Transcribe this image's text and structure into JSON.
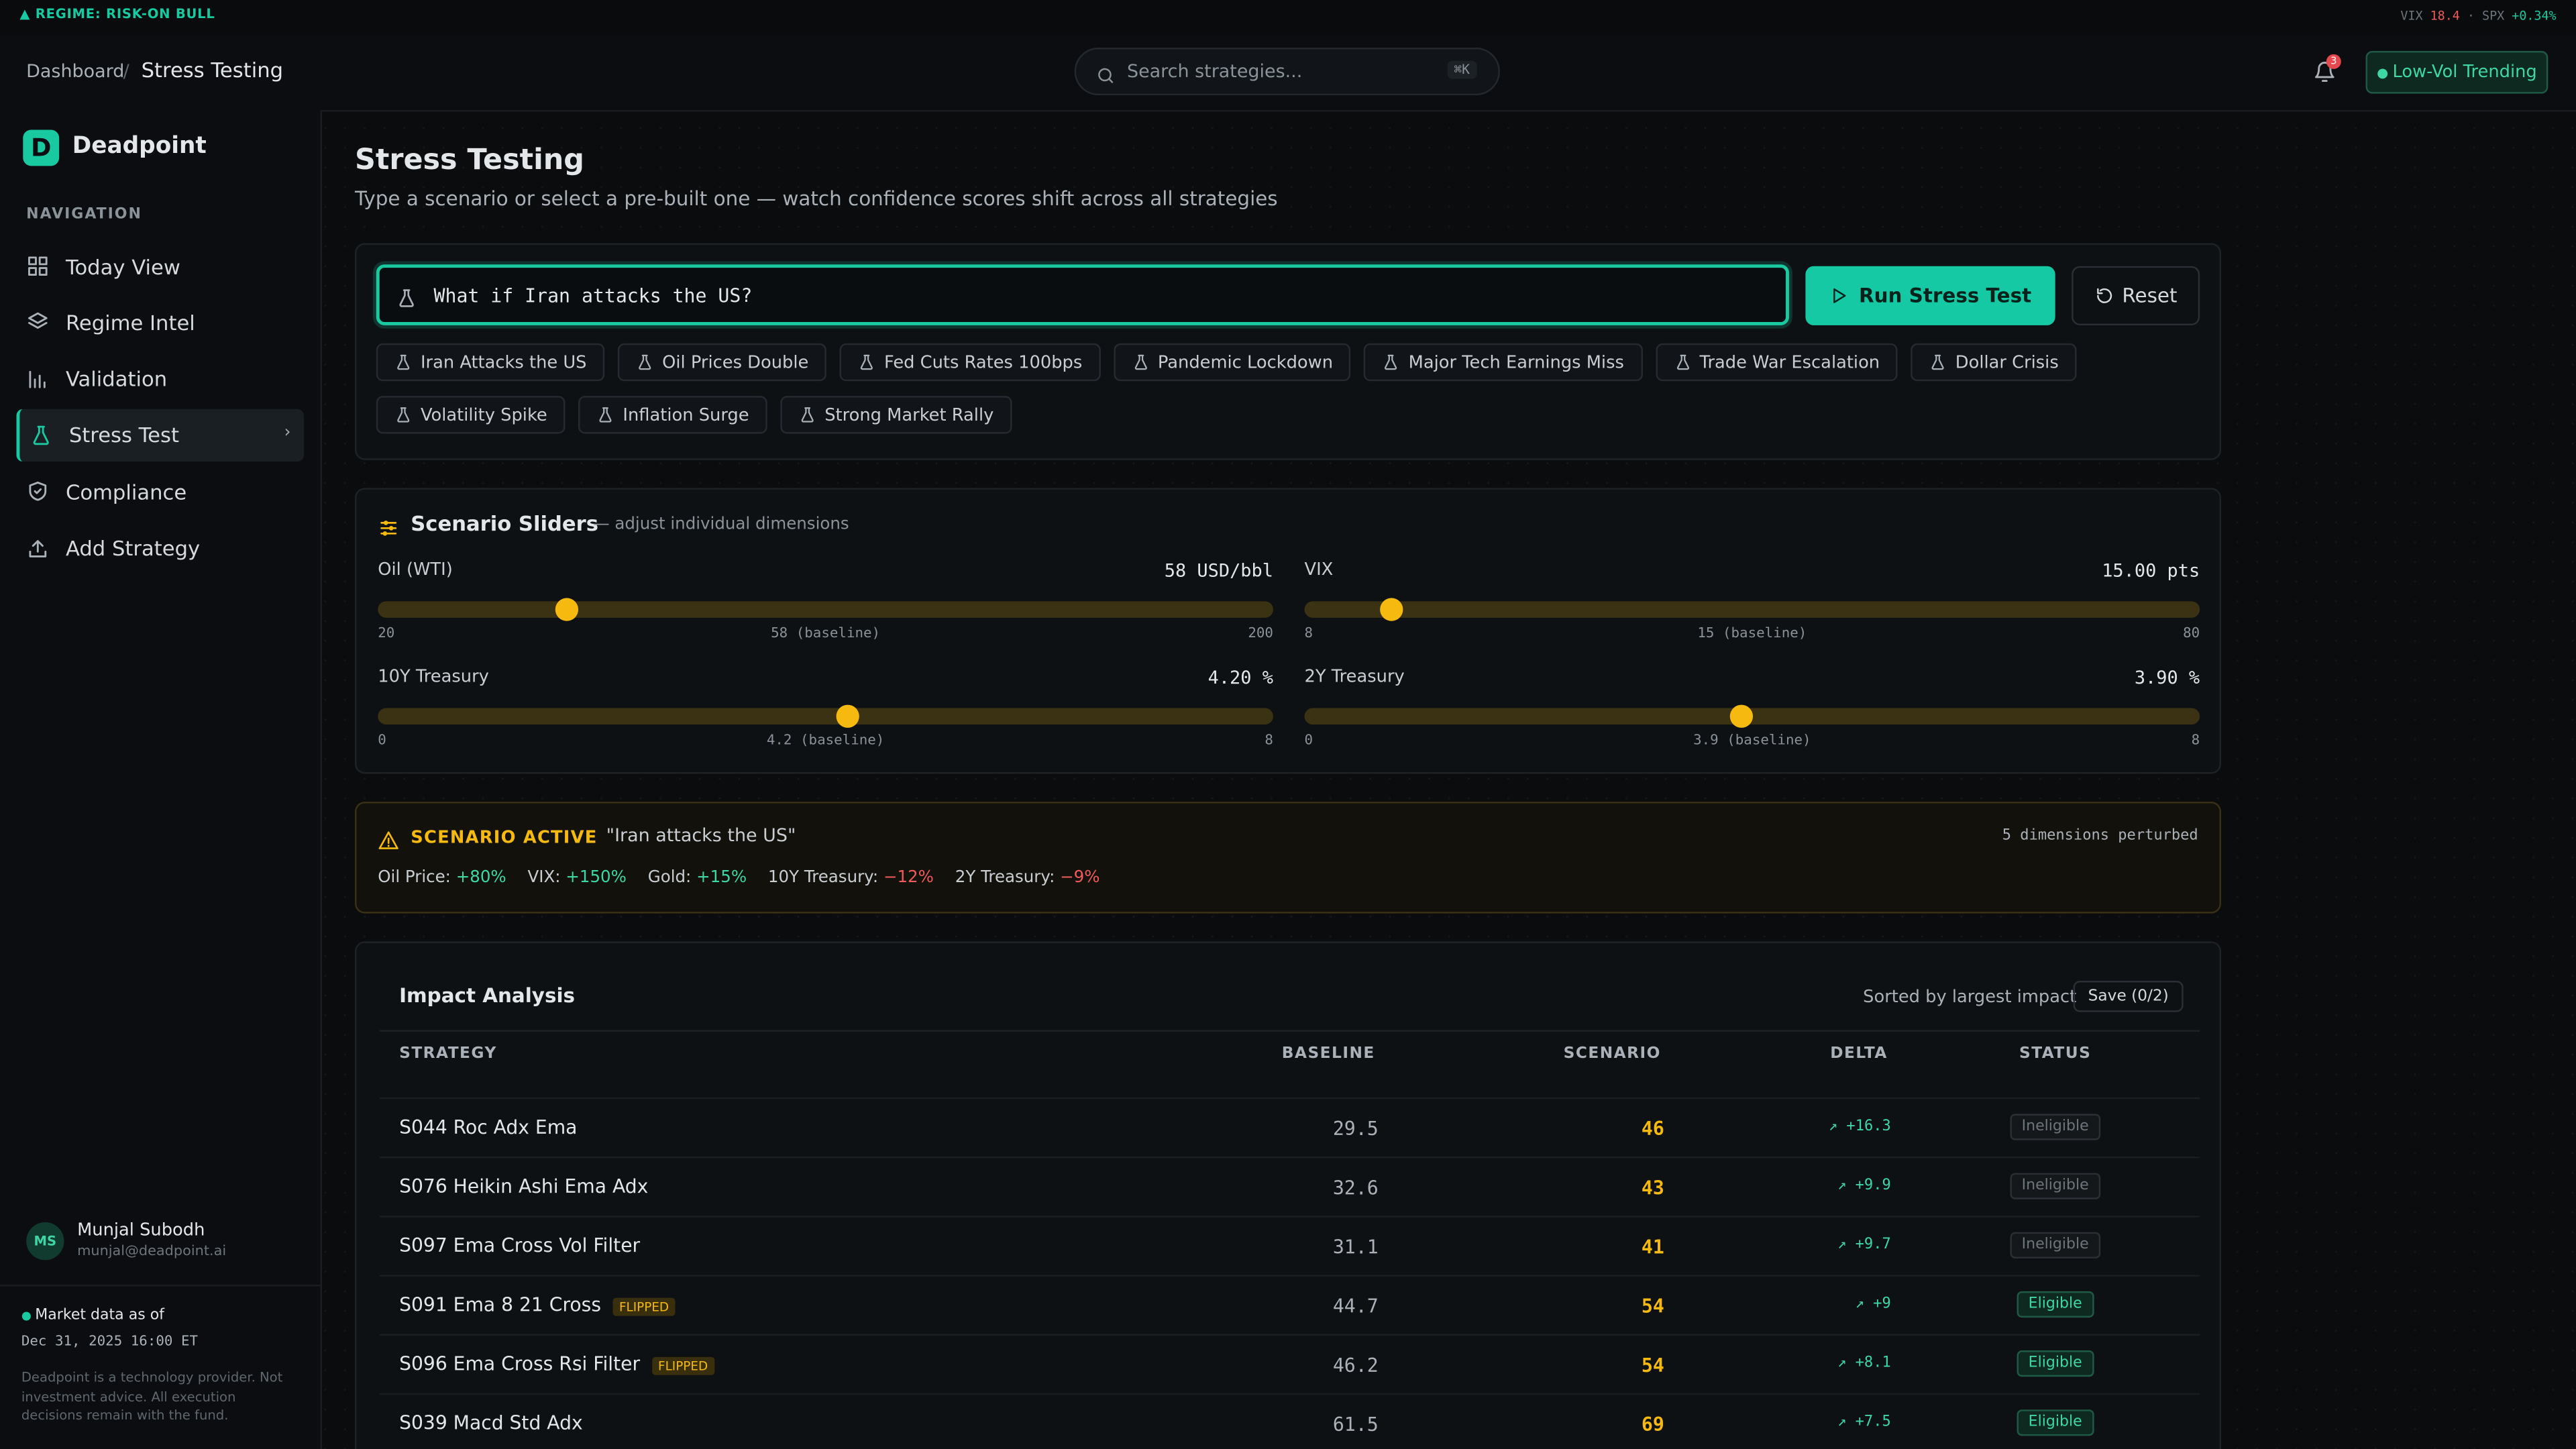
{
  "topbar": {
    "regime": "REGIME: RISK-ON BULL",
    "vix_label": "VIX",
    "vix": "18.4",
    "spx_label": "SPX",
    "spx": "+0.34%"
  },
  "header": {
    "breadcrumb": [
      "Dashboard",
      "Stress Testing"
    ],
    "search_placeholder": "Search strategies...",
    "shortcut": "⌘K",
    "notifications": 3,
    "regime_badge": "Low-Vol Trending"
  },
  "sidebar": {
    "brand": "Deadpoint",
    "nav_heading": "NAVIGATION",
    "nav": [
      "Today View",
      "Regime Intel",
      "Validation",
      "Stress Test",
      "Compliance",
      "Add Strategy"
    ],
    "user": {
      "initials": "MS",
      "name": "Munjal Subodh",
      "email": "munjal@deadpoint.ai"
    },
    "market_data": "Market data as of",
    "timestamp": "Dec 31, 2025 16:00 ET",
    "disclaimer": "Deadpoint is a technology provider. Not investment advice. All execution decisions remain with the fund."
  },
  "page": {
    "title": "Stress Testing",
    "subtitle": "Type a scenario or select a pre-built one — watch confidence scores shift across all strategies"
  },
  "scenario": {
    "input": "What if Iran attacks the US?",
    "run": "Run Stress Test",
    "reset": "Reset",
    "presets": [
      "Iran Attacks the US",
      "Oil Prices Double",
      "Fed Cuts Rates 100bps",
      "Pandemic Lockdown",
      "Major Tech Earnings Miss",
      "Trade War Escalation",
      "Dollar Crisis",
      "Volatility Spike",
      "Inflation Surge",
      "Strong Market Rally"
    ]
  },
  "sliders": {
    "title": "Scenario Sliders",
    "subtitle": "— adjust individual dimensions",
    "items": [
      {
        "label": "Oil (WTI)",
        "value_label": "58 USD/bbl",
        "value": 58,
        "min": 20,
        "max": 200,
        "baseline": "58 (baseline)"
      },
      {
        "label": "VIX",
        "value_label": "15.00 pts",
        "value": 15,
        "min": 8,
        "max": 80,
        "baseline": "15 (baseline)"
      },
      {
        "label": "10Y Treasury",
        "value_label": "4.20 %",
        "value": 4.2,
        "min": 0,
        "max": 8,
        "baseline": "4.2 (baseline)"
      },
      {
        "label": "2Y Treasury",
        "value_label": "3.90 %",
        "value": 3.9,
        "min": 0,
        "max": 8,
        "baseline": "3.9 (baseline)"
      }
    ]
  },
  "active": {
    "label": "SCENARIO ACTIVE",
    "quote": "\"Iran attacks the US\"",
    "dimensions": "5 dimensions perturbed",
    "effects": [
      {
        "name": "Oil Price:",
        "value": "+80%"
      },
      {
        "name": "VIX:",
        "value": "+150%"
      },
      {
        "name": "Gold:",
        "value": "+15%"
      },
      {
        "name": "10Y Treasury:",
        "value": "−12%"
      },
      {
        "name": "2Y Treasury:",
        "value": "−9%"
      }
    ]
  },
  "impact": {
    "title": "Impact Analysis",
    "sort": "Sorted by largest impact",
    "save": "Save (0/2)",
    "columns": [
      "STRATEGY",
      "BASELINE",
      "SCENARIO",
      "DELTA",
      "STATUS"
    ],
    "rows": [
      {
        "strategy": "S044 Roc Adx Ema",
        "baseline": 29.5,
        "scenario": 46,
        "delta": "+16.3",
        "status": "Ineligible"
      },
      {
        "strategy": "S076 Heikin Ashi Ema Adx",
        "baseline": 32.6,
        "scenario": 43,
        "delta": "+9.9",
        "status": "Ineligible"
      },
      {
        "strategy": "S097 Ema Cross Vol Filter",
        "baseline": 31.1,
        "scenario": 41,
        "delta": "+9.7",
        "status": "Ineligible"
      },
      {
        "strategy": "S091 Ema 8 21 Cross",
        "flag": "FLIPPED",
        "baseline": 44.7,
        "scenario": 54,
        "delta": "+9",
        "status": "Eligible"
      },
      {
        "strategy": "S096 Ema Cross Rsi Filter",
        "flag": "FLIPPED",
        "baseline": 46.2,
        "scenario": 54,
        "delta": "+8.1",
        "status": "Eligible"
      },
      {
        "strategy": "S039 Macd Std Adx",
        "baseline": 61.5,
        "scenario": 69,
        "delta": "+7.5",
        "status": "Eligible"
      }
    ]
  }
}
